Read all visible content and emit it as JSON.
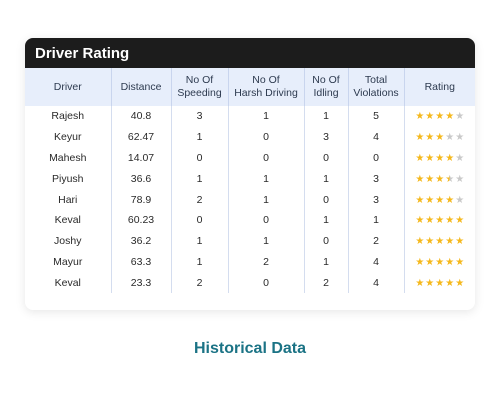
{
  "card": {
    "title": "Driver Rating",
    "columns": [
      {
        "label": "Driver",
        "width": 86
      },
      {
        "label": "Distance",
        "width": 60
      },
      {
        "label": "No Of\nSpeeding",
        "width": 57
      },
      {
        "label": "No Of\nHarsh Driving",
        "width": 76
      },
      {
        "label": "No Of\nIdling",
        "width": 44
      },
      {
        "label": "Total\nViolations",
        "width": 56
      },
      {
        "label": "Rating",
        "width": 71
      }
    ],
    "rows": [
      {
        "driver": "Rajesh",
        "distance": "40.8",
        "speeding": "3",
        "harsh": "1",
        "idling": "1",
        "violations": "5",
        "rating": 4
      },
      {
        "driver": "Keyur",
        "distance": "62.47",
        "speeding": "1",
        "harsh": "0",
        "idling": "3",
        "violations": "4",
        "rating": 3
      },
      {
        "driver": "Mahesh",
        "distance": "14.07",
        "speeding": "0",
        "harsh": "0",
        "idling": "0",
        "violations": "0",
        "rating": 4
      },
      {
        "driver": "Piyush",
        "distance": "36.6",
        "speeding": "1",
        "harsh": "1",
        "idling": "1",
        "violations": "3",
        "rating": 3.5
      },
      {
        "driver": "Hari",
        "distance": "78.9",
        "speeding": "2",
        "harsh": "1",
        "idling": "0",
        "violations": "3",
        "rating": 4
      },
      {
        "driver": "Keval",
        "distance": "60.23",
        "speeding": "0",
        "harsh": "0",
        "idling": "1",
        "violations": "1",
        "rating": 5
      },
      {
        "driver": "Joshy",
        "distance": "36.2",
        "speeding": "1",
        "harsh": "1",
        "idling": "0",
        "violations": "2",
        "rating": 5
      },
      {
        "driver": "Mayur",
        "distance": "63.3",
        "speeding": "1",
        "harsh": "2",
        "idling": "1",
        "violations": "4",
        "rating": 5
      },
      {
        "driver": "Keval",
        "distance": "23.3",
        "speeding": "2",
        "harsh": "0",
        "idling": "2",
        "violations": "4",
        "rating": 5
      }
    ],
    "max_rating": 5
  },
  "caption": "Historical Data",
  "colors": {
    "header_bg": "#1c1c1c",
    "table_head_bg": "#e7eefb",
    "star_filled": "#f5b81c",
    "star_empty": "#c9c9c9",
    "caption": "#1b7385"
  }
}
